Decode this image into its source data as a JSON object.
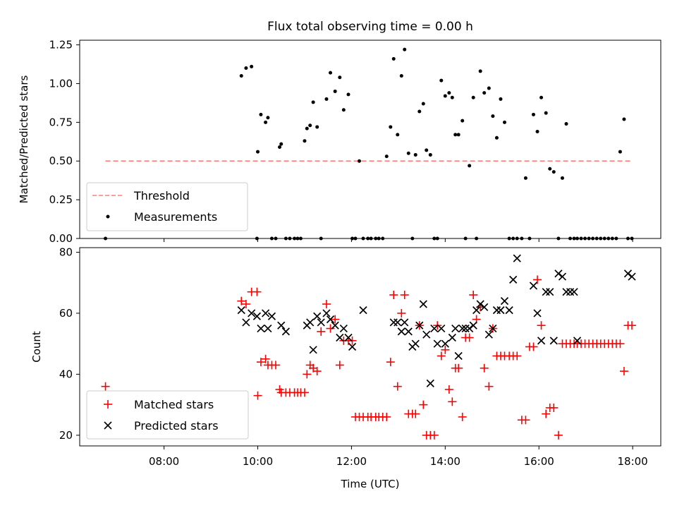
{
  "figure": {
    "title": "Flux total observing time = 0.00 h"
  },
  "chart_data": [
    {
      "type": "scatter",
      "title": "Flux total observing time = 0.00 h",
      "xlabel": "",
      "ylabel": "Matched/Predicted stars",
      "xlim": [
        "06:12",
        "18:36"
      ],
      "ylim": [
        0,
        1.28
      ],
      "yticks": [
        "0.00",
        "0.25",
        "0.50",
        "0.75",
        "1.00",
        "1.25"
      ],
      "yticks_values": [
        0,
        0.25,
        0.5,
        0.75,
        1.0,
        1.25
      ],
      "grid": false,
      "legend_placement": "lower-left",
      "threshold": {
        "name": "Threshold",
        "y": 0.5,
        "x_start": "06:45",
        "x_end": "17:59",
        "color": "#ff7f7f",
        "style": "dashed"
      },
      "series": [
        {
          "name": "Measurements",
          "marker": "dot",
          "color": "#000000",
          "x": [
            "06:45",
            "09:39",
            "09:45",
            "09:52",
            "09:59",
            "10:00",
            "10:04",
            "10:10",
            "10:13",
            "10:18",
            "10:23",
            "10:28",
            "10:30",
            "10:36",
            "10:41",
            "10:47",
            "10:51",
            "10:55",
            "11:00",
            "11:03",
            "11:07",
            "11:11",
            "11:16",
            "11:21",
            "11:28",
            "11:33",
            "11:39",
            "11:45",
            "11:50",
            "11:56",
            "12:01",
            "12:05",
            "12:10",
            "12:15",
            "12:21",
            "12:25",
            "12:31",
            "12:35",
            "12:40",
            "12:45",
            "12:50",
            "12:54",
            "12:59",
            "13:04",
            "13:08",
            "13:13",
            "13:18",
            "13:22",
            "13:27",
            "13:32",
            "13:36",
            "13:41",
            "13:46",
            "13:50",
            "13:55",
            "14:00",
            "14:05",
            "14:09",
            "14:13",
            "14:17",
            "14:22",
            "14:26",
            "14:31",
            "14:36",
            "14:40",
            "14:45",
            "14:50",
            "14:56",
            "15:01",
            "15:06",
            "15:11",
            "15:16",
            "15:22",
            "15:27",
            "15:32",
            "15:38",
            "15:43",
            "15:48",
            "15:53",
            "15:58",
            "16:03",
            "16:09",
            "16:14",
            "16:19",
            "16:25",
            "16:30",
            "16:35",
            "16:40",
            "16:45",
            "16:49",
            "16:54",
            "16:59",
            "17:04",
            "17:09",
            "17:14",
            "17:19",
            "17:24",
            "17:29",
            "17:34",
            "17:39",
            "17:44",
            "17:49",
            "17:54",
            "17:59"
          ],
          "y": [
            0.0,
            1.05,
            1.1,
            1.11,
            0.0,
            0.56,
            0.8,
            0.75,
            0.78,
            0.0,
            0.0,
            0.59,
            0.61,
            0.0,
            0.0,
            0.0,
            0.0,
            0.0,
            0.63,
            0.71,
            0.73,
            0.88,
            0.72,
            0.0,
            0.9,
            1.07,
            0.95,
            1.04,
            0.83,
            0.93,
            0.0,
            0.0,
            0.5,
            0.0,
            0.0,
            0.0,
            0.0,
            0.0,
            0.0,
            0.53,
            0.72,
            1.16,
            0.67,
            1.05,
            1.22,
            0.55,
            0.0,
            0.54,
            0.82,
            0.87,
            0.57,
            0.54,
            0.0,
            0.0,
            1.02,
            0.92,
            0.94,
            0.91,
            0.67,
            0.67,
            0.76,
            0.0,
            0.47,
            0.91,
            0.0,
            1.08,
            0.94,
            0.97,
            0.79,
            0.65,
            0.9,
            0.75,
            0.0,
            0.0,
            0.0,
            0.0,
            0.39,
            0.0,
            0.8,
            0.69,
            0.91,
            0.81,
            0.45,
            0.43,
            0.0,
            0.39,
            0.74,
            0.0,
            0.0,
            0.0,
            0.0,
            0.0,
            0.0,
            0.0,
            0.0,
            0.0,
            0.0,
            0.0,
            0.0,
            0.0,
            0.56,
            0.77,
            0.0,
            0.0
          ]
        }
      ]
    },
    {
      "type": "scatter",
      "title": "",
      "xlabel": "Time (UTC)",
      "ylabel": "Count",
      "xlim": [
        "06:12",
        "18:36"
      ],
      "ylim": [
        16.5,
        81.5
      ],
      "yticks": [
        "20",
        "40",
        "60",
        "80"
      ],
      "yticks_values": [
        20,
        40,
        60,
        80
      ],
      "xticks": [
        "08:00",
        "10:00",
        "12:00",
        "14:00",
        "16:00",
        "18:00"
      ],
      "grid": false,
      "legend_placement": "lower-left",
      "series": [
        {
          "name": "Matched stars",
          "marker": "plus",
          "color": "#ff0000",
          "x": [
            "06:45",
            "09:39",
            "09:45",
            "09:52",
            "09:59",
            "10:00",
            "10:04",
            "10:10",
            "10:13",
            "10:18",
            "10:23",
            "10:28",
            "10:30",
            "10:36",
            "10:41",
            "10:47",
            "10:51",
            "10:55",
            "11:00",
            "11:03",
            "11:07",
            "11:11",
            "11:16",
            "11:21",
            "11:28",
            "11:33",
            "11:39",
            "11:45",
            "11:50",
            "11:56",
            "12:01",
            "12:05",
            "12:10",
            "12:15",
            "12:21",
            "12:25",
            "12:31",
            "12:35",
            "12:40",
            "12:45",
            "12:50",
            "12:54",
            "12:59",
            "13:04",
            "13:08",
            "13:13",
            "13:18",
            "13:22",
            "13:27",
            "13:32",
            "13:36",
            "13:41",
            "13:46",
            "13:50",
            "13:55",
            "14:00",
            "14:05",
            "14:09",
            "14:13",
            "14:17",
            "14:22",
            "14:26",
            "14:31",
            "14:36",
            "14:40",
            "14:45",
            "14:50",
            "14:56",
            "15:01",
            "15:06",
            "15:11",
            "15:16",
            "15:22",
            "15:27",
            "15:32",
            "15:38",
            "15:43",
            "15:48",
            "15:53",
            "15:58",
            "16:03",
            "16:09",
            "16:14",
            "16:19",
            "16:25",
            "16:30",
            "16:35",
            "16:40",
            "16:45",
            "16:49",
            "16:54",
            "16:59",
            "17:04",
            "17:09",
            "17:14",
            "17:19",
            "17:24",
            "17:29",
            "17:34",
            "17:39",
            "17:44",
            "17:49",
            "17:54",
            "17:59"
          ],
          "y": [
            36,
            64,
            63,
            67,
            67,
            33,
            44,
            45,
            43,
            43,
            43,
            35,
            34,
            34,
            34,
            34,
            34,
            34,
            34,
            40,
            43,
            42,
            41,
            54,
            63,
            55,
            58,
            43,
            51,
            51,
            51,
            26,
            26,
            26,
            26,
            26,
            26,
            26,
            26,
            26,
            44,
            66,
            36,
            60,
            66,
            27,
            27,
            27,
            56,
            30,
            20,
            20,
            20,
            56,
            46,
            48,
            35,
            31,
            42,
            42,
            26,
            52,
            52,
            66,
            58,
            62,
            42,
            36,
            55,
            46,
            46,
            46,
            46,
            46,
            46,
            25,
            25,
            49,
            49,
            71,
            56,
            27,
            29,
            29,
            20,
            50,
            50,
            50,
            50,
            50,
            50,
            50,
            50,
            50,
            50,
            50,
            50,
            50,
            50,
            50,
            50,
            41,
            56,
            56
          ]
        },
        {
          "name": "Predicted stars",
          "marker": "x",
          "color": "#000000",
          "x": [
            "09:39",
            "09:45",
            "09:52",
            "09:59",
            "10:04",
            "10:10",
            "10:13",
            "10:18",
            "10:30",
            "10:36",
            "11:03",
            "11:07",
            "11:11",
            "11:16",
            "11:21",
            "11:28",
            "11:33",
            "11:39",
            "11:45",
            "11:50",
            "11:56",
            "12:01",
            "12:15",
            "12:54",
            "12:59",
            "13:04",
            "13:08",
            "13:13",
            "13:18",
            "13:22",
            "13:27",
            "13:32",
            "13:36",
            "13:41",
            "13:46",
            "13:50",
            "13:55",
            "14:00",
            "14:09",
            "14:13",
            "14:17",
            "14:22",
            "14:26",
            "14:31",
            "14:36",
            "14:40",
            "14:45",
            "14:50",
            "14:56",
            "15:01",
            "15:06",
            "15:11",
            "15:16",
            "15:22",
            "15:27",
            "15:32",
            "15:53",
            "15:58",
            "16:03",
            "16:09",
            "16:14",
            "16:19",
            "16:25",
            "16:30",
            "16:35",
            "16:40",
            "16:45",
            "16:49",
            "17:54",
            "17:59"
          ],
          "y": [
            61,
            57,
            60,
            59,
            55,
            60,
            55,
            59,
            56,
            54,
            56,
            57,
            48,
            59,
            57,
            60,
            58,
            56,
            52,
            55,
            52,
            49,
            61,
            57,
            57,
            54,
            57,
            54,
            49,
            50,
            56,
            63,
            53,
            37,
            55,
            50,
            55,
            50,
            52,
            55,
            46,
            55,
            55,
            55,
            56,
            61,
            63,
            62,
            53,
            55,
            61,
            61,
            64,
            61,
            71,
            78,
            69,
            60,
            51,
            67,
            67,
            51,
            73,
            72,
            67,
            67,
            67,
            51,
            73,
            72
          ]
        }
      ]
    }
  ]
}
